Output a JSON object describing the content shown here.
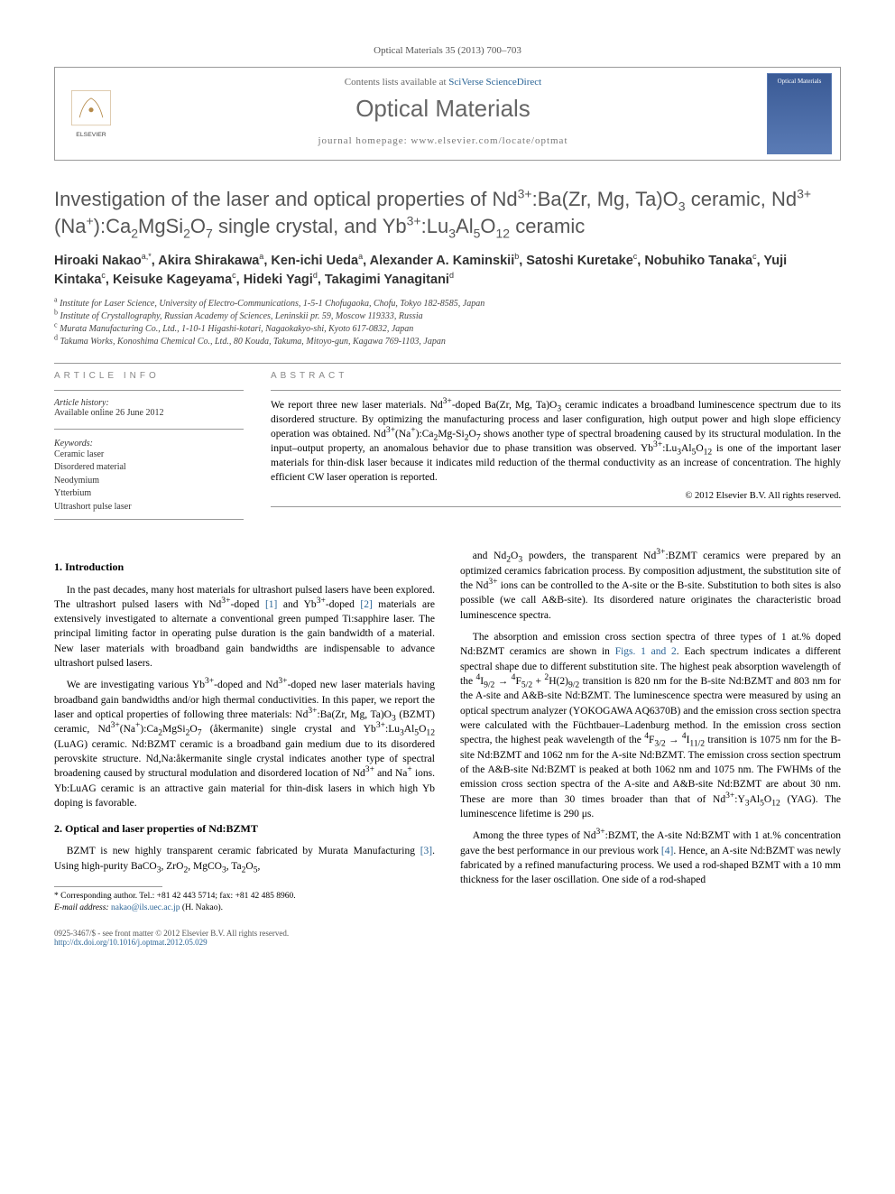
{
  "header": {
    "citation": "Optical Materials 35 (2013) 700–703",
    "contents_prefix": "Contents lists available at ",
    "contents_link": "SciVerse ScienceDirect",
    "journal": "Optical Materials",
    "homepage_prefix": "journal homepage: ",
    "homepage": "www.elsevier.com/locate/optmat",
    "publisher": "ELSEVIER",
    "thumb_label": "Optical Materials"
  },
  "title_html": "Investigation of the laser and optical properties of Nd<sup>3+</sup>:Ba(Zr, Mg, Ta)O<sub>3</sub> ceramic, Nd<sup>3+</sup>(Na<sup>+</sup>):Ca<sub>2</sub>MgSi<sub>2</sub>O<sub>7</sub> single crystal, and Yb<sup>3+</sup>:Lu<sub>3</sub>Al<sub>5</sub>O<sub>12</sub> ceramic",
  "authors_html": "Hiroaki Nakao<sup>a,*</sup>, Akira Shirakawa<sup>a</sup>, Ken-ichi Ueda<sup>a</sup>, Alexander A. Kaminskii<sup>b</sup>, Satoshi Kuretake<sup>c</sup>, Nobuhiko Tanaka<sup>c</sup>, Yuji Kintaka<sup>c</sup>, Keisuke Kageyama<sup>c</sup>, Hideki Yagi<sup>d</sup>, Takagimi Yanagitani<sup>d</sup>",
  "affiliations": [
    {
      "marker": "a",
      "text": "Institute for Laser Science, University of Electro-Communications, 1-5-1 Chofugaoka, Chofu, Tokyo 182-8585, Japan"
    },
    {
      "marker": "b",
      "text": "Institute of Crystallography, Russian Academy of Sciences, Leninskii pr. 59, Moscow 119333, Russia"
    },
    {
      "marker": "c",
      "text": "Murata Manufacturing Co., Ltd., 1-10-1 Higashi-kotari, Nagaokakyo-shi, Kyoto 617-0832, Japan"
    },
    {
      "marker": "d",
      "text": "Takuma Works, Konoshima Chemical Co., Ltd., 80 Kouda, Takuma, Mitoyo-gun, Kagawa 769-1103, Japan"
    }
  ],
  "article_info": {
    "heading": "ARTICLE INFO",
    "history_label": "Article history:",
    "history": "Available online 26 June 2012",
    "keywords_label": "Keywords:",
    "keywords": [
      "Ceramic laser",
      "Disordered material",
      "Neodymium",
      "Ytterbium",
      "Ultrashort pulse laser"
    ]
  },
  "abstract": {
    "heading": "ABSTRACT",
    "text_html": "We report three new laser materials. Nd<sup>3+</sup>-doped Ba(Zr, Mg, Ta)O<sub>3</sub> ceramic indicates a broadband luminescence spectrum due to its disordered structure. By optimizing the manufacturing process and laser configuration, high output power and high slope efficiency operation was obtained. Nd<sup>3+</sup>(Na<sup>+</sup>):Ca<sub>2</sub>Mg-Si<sub>2</sub>O<sub>7</sub> shows another type of spectral broadening caused by its structural modulation. In the input–output property, an anomalous behavior due to phase transition was observed. Yb<sup>3+</sup>:Lu<sub>3</sub>Al<sub>5</sub>O<sub>12</sub> is one of the important laser materials for thin-disk laser because it indicates mild reduction of the thermal conductivity as an increase of concentration. The highly efficient CW laser operation is reported.",
    "copyright": "© 2012 Elsevier B.V. All rights reserved."
  },
  "body": {
    "sections": [
      {
        "heading": "1. Introduction",
        "paragraphs_html": [
          "In the past decades, many host materials for ultrashort pulsed lasers have been explored. The ultrashort pulsed lasers with Nd<sup>3+</sup>-doped <span class=\"ref\">[1]</span> and Yb<sup>3+</sup>-doped <span class=\"ref\">[2]</span> materials are extensively investigated to alternate a conventional green pumped Ti:sapphire laser. The principal limiting factor in operating pulse duration is the gain bandwidth of a material. New laser materials with broadband gain bandwidths are indispensable to advance ultrashort pulsed lasers.",
          "We are investigating various Yb<sup>3+</sup>-doped and Nd<sup>3+</sup>-doped new laser materials having broadband gain bandwidths and/or high thermal conductivities. In this paper, we report the laser and optical properties of following three materials: Nd<sup>3+</sup>:Ba(Zr, Mg, Ta)O<sub>3</sub> (BZMT) ceramic, Nd<sup>3+</sup>(Na<sup>+</sup>):Ca<sub>2</sub>MgSi<sub>2</sub>O<sub>7</sub> (åkermanite) single crystal and Yb<sup>3+</sup>:Lu<sub>3</sub>Al<sub>5</sub>O<sub>12</sub> (LuAG) ceramic. Nd:BZMT ceramic is a broadband gain medium due to its disordered perovskite structure. Nd,Na:åkermanite single crystal indicates another type of spectral broadening caused by structural modulation and disordered location of Nd<sup>3+</sup> and Na<sup>+</sup> ions. Yb:LuAG ceramic is an attractive gain material for thin-disk lasers in which high Yb doping is favorable."
        ]
      },
      {
        "heading": "2. Optical and laser properties of Nd:BZMT",
        "paragraphs_html": [
          "BZMT is new highly transparent ceramic fabricated by Murata Manufacturing <span class=\"ref\">[3]</span>. Using high-purity BaCO<sub>3</sub>, ZrO<sub>2</sub>, MgCO<sub>3</sub>, Ta<sub>2</sub>O<sub>5</sub>,"
        ]
      }
    ],
    "col2_paragraphs_html": [
      "and Nd<sub>2</sub>O<sub>3</sub> powders, the transparent Nd<sup>3+</sup>:BZMT ceramics were prepared by an optimized ceramics fabrication process. By composition adjustment, the substitution site of the Nd<sup>3+</sup> ions can be controlled to the A-site or the B-site. Substitution to both sites is also possible (we call A&B-site). Its disordered nature originates the characteristic broad luminescence spectra.",
      "The absorption and emission cross section spectra of three types of 1 at.% doped Nd:BZMT ceramics are shown in <span class=\"ref\">Figs. 1 and 2</span>. Each spectrum indicates a different spectral shape due to different substitution site. The highest peak absorption wavelength of the <sup>4</sup>I<sub>9/2</sub> → <sup>4</sup>F<sub>5/2</sub> + <sup>2</sup>H(2)<sub>9/2</sub> transition is 820 nm for the B-site Nd:BZMT and 803 nm for the A-site and A&B-site Nd:BZMT. The luminescence spectra were measured by using an optical spectrum analyzer (YOKOGAWA AQ6370B) and the emission cross section spectra were calculated with the Füchtbauer–Ladenburg method. In the emission cross section spectra, the highest peak wavelength of the <sup>4</sup>F<sub>3/2</sub> → <sup>4</sup>I<sub>11/2</sub> transition is 1075 nm for the B-site Nd:BZMT and 1062 nm for the A-site Nd:BZMT. The emission cross section spectrum of the A&B-site Nd:BZMT is peaked at both 1062 nm and 1075 nm. The FWHMs of the emission cross section spectra of the A-site and A&B-site Nd:BZMT are about 30 nm. These are more than 30 times broader than that of Nd<sup>3+</sup>:Y<sub>3</sub>Al<sub>5</sub>O<sub>12</sub> (YAG). The luminescence lifetime is 290 μs.",
      "Among the three types of Nd<sup>3+</sup>:BZMT, the A-site Nd:BZMT with 1 at.% concentration gave the best performance in our previous work <span class=\"ref\">[4]</span>. Hence, an A-site Nd:BZMT was newly fabricated by a refined manufacturing process. We used a rod-shaped BZMT with a 10 mm thickness for the laser oscillation. One side of a rod-shaped"
    ]
  },
  "footnote": {
    "marker": "*",
    "text": "Corresponding author. Tel.: +81 42 443 5714; fax: +81 42 485 8960.",
    "email_label": "E-mail address:",
    "email": "nakao@ils.uec.ac.jp",
    "email_suffix": "(H. Nakao)."
  },
  "footer": {
    "line1": "0925-3467/$ - see front matter © 2012 Elsevier B.V. All rights reserved.",
    "doi": "http://dx.doi.org/10.1016/j.optmat.2012.05.029"
  },
  "colors": {
    "link": "#2a6496",
    "header_text": "#666666",
    "border": "#999999"
  }
}
